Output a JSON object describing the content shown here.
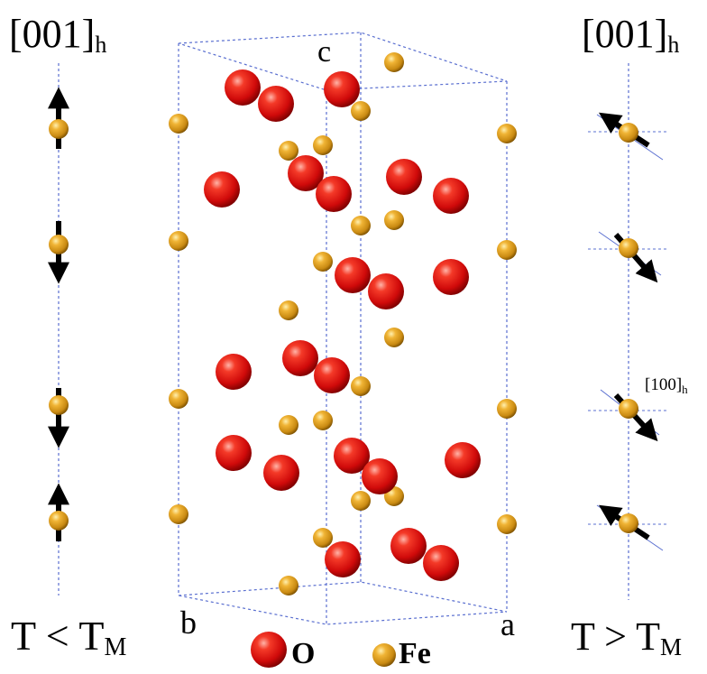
{
  "left_panel": {
    "direction_label": "[001]",
    "direction_subscript": "h",
    "condition_label": "T < T",
    "condition_subscript": "M"
  },
  "right_panel": {
    "direction_label": "[001]",
    "direction_subscript": "h",
    "moment_direction_label": "[100]",
    "moment_direction_subscript": "h",
    "condition_label": "T > T",
    "condition_subscript": "M"
  },
  "cell": {
    "axis_c": "c",
    "axis_b": "b",
    "axis_a": "a"
  },
  "legend": {
    "oxygen_label": "O",
    "iron_label": "Fe"
  },
  "colors": {
    "oxygen": "#e01010",
    "iron": "#d99a1a",
    "cell_edge": "#5a6fd0",
    "arrow": "#000000"
  }
}
